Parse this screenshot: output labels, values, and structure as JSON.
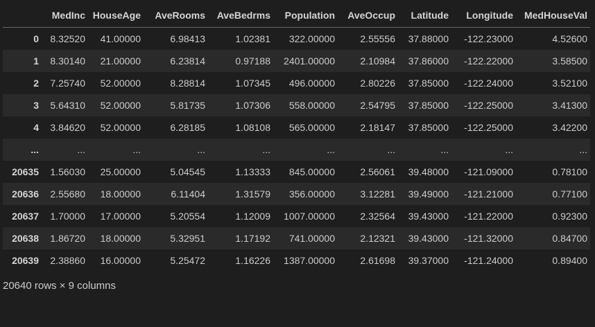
{
  "dataframe": {
    "index_header": "",
    "columns": [
      "MedInc",
      "HouseAge",
      "AveRooms",
      "AveBedrms",
      "Population",
      "AveOccup",
      "Latitude",
      "Longitude",
      "MedHouseVal"
    ],
    "rows": [
      {
        "index": "0",
        "values": [
          "8.32520",
          "41.00000",
          "6.98413",
          "1.02381",
          "322.00000",
          "2.55556",
          "37.88000",
          "-122.23000",
          "4.52600"
        ]
      },
      {
        "index": "1",
        "values": [
          "8.30140",
          "21.00000",
          "6.23814",
          "0.97188",
          "2401.00000",
          "2.10984",
          "37.86000",
          "-122.22000",
          "3.58500"
        ]
      },
      {
        "index": "2",
        "values": [
          "7.25740",
          "52.00000",
          "8.28814",
          "1.07345",
          "496.00000",
          "2.80226",
          "37.85000",
          "-122.24000",
          "3.52100"
        ]
      },
      {
        "index": "3",
        "values": [
          "5.64310",
          "52.00000",
          "5.81735",
          "1.07306",
          "558.00000",
          "2.54795",
          "37.85000",
          "-122.25000",
          "3.41300"
        ]
      },
      {
        "index": "4",
        "values": [
          "3.84620",
          "52.00000",
          "6.28185",
          "1.08108",
          "565.00000",
          "2.18147",
          "37.85000",
          "-122.25000",
          "3.42200"
        ]
      },
      {
        "index": "...",
        "values": [
          "...",
          "...",
          "...",
          "...",
          "...",
          "...",
          "...",
          "...",
          "..."
        ]
      },
      {
        "index": "20635",
        "values": [
          "1.56030",
          "25.00000",
          "5.04545",
          "1.13333",
          "845.00000",
          "2.56061",
          "39.48000",
          "-121.09000",
          "0.78100"
        ]
      },
      {
        "index": "20636",
        "values": [
          "2.55680",
          "18.00000",
          "6.11404",
          "1.31579",
          "356.00000",
          "3.12281",
          "39.49000",
          "-121.21000",
          "0.77100"
        ]
      },
      {
        "index": "20637",
        "values": [
          "1.70000",
          "17.00000",
          "5.20554",
          "1.12009",
          "1007.00000",
          "2.32564",
          "39.43000",
          "-121.22000",
          "0.92300"
        ]
      },
      {
        "index": "20638",
        "values": [
          "1.86720",
          "18.00000",
          "5.32951",
          "1.17192",
          "741.00000",
          "2.12321",
          "39.43000",
          "-121.32000",
          "0.84700"
        ]
      },
      {
        "index": "20639",
        "values": [
          "2.38860",
          "16.00000",
          "5.25472",
          "1.16226",
          "1387.00000",
          "2.61698",
          "39.37000",
          "-121.24000",
          "0.89400"
        ]
      }
    ],
    "shape_text": "20640 rows × 9 columns"
  }
}
